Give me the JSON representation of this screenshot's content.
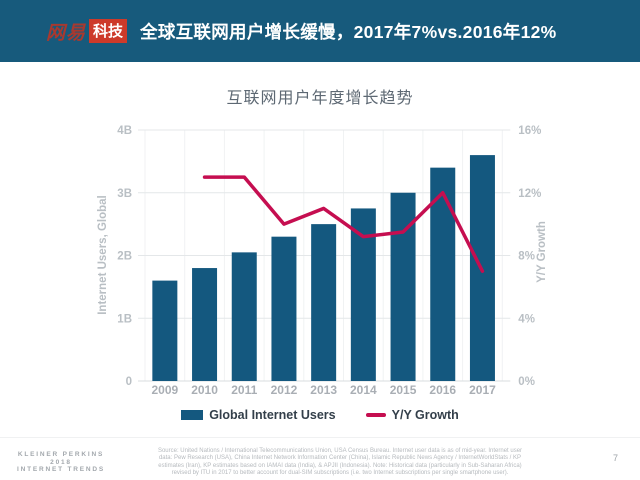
{
  "colors": {
    "header_bg": "#175a7c",
    "logo_red": "#a8392f",
    "logo_badge_bg": "#cd3a2a",
    "bar_blue": "#14587f",
    "line_crimson": "#c50e50"
  },
  "header": {
    "logo_text": "网易",
    "logo_badge": "科技",
    "title": "全球互联网用户增长缓慢，2017年7%vs.2016年12%"
  },
  "chart_data": {
    "type": "bar+line",
    "title": "互联网用户年度增长趋势",
    "categories": [
      "2009",
      "2010",
      "2011",
      "2012",
      "2013",
      "2014",
      "2015",
      "2016",
      "2017"
    ],
    "series": [
      {
        "name": "Global Internet Users",
        "type": "bar",
        "axis": "left",
        "unit": "billions",
        "color": "#14587f",
        "values": [
          1.6,
          1.8,
          2.05,
          2.3,
          2.5,
          2.75,
          3.0,
          3.4,
          3.6
        ]
      },
      {
        "name": "Y/Y Growth",
        "type": "line",
        "axis": "right",
        "unit": "%",
        "color": "#c50e50",
        "values": [
          null,
          13,
          13,
          10,
          11,
          9.2,
          9.5,
          12,
          7
        ]
      }
    ],
    "left_axis": {
      "label": "Internet Users, Global",
      "ticks": [
        "0",
        "1B",
        "2B",
        "3B",
        "4B"
      ],
      "min": 0,
      "max": 4
    },
    "right_axis": {
      "label": "Y/Y Growth",
      "ticks": [
        "0%",
        "4%",
        "8%",
        "12%",
        "16%"
      ],
      "min": 0,
      "max": 16
    },
    "legend_position": "bottom",
    "grid": "horizontal + faint vertical column lines"
  },
  "footer": {
    "brand_lines": [
      "KLEINER PERKINS",
      "2018",
      "INTERNET TRENDS"
    ],
    "source_lines": [
      "Source: United Nations / International Telecommunications Union, USA Census Bureau. Internet user data is as of mid-year. Internet user",
      "data: Pew Research (USA), China Internet Network Information Center (China), Islamic Republic News Agency / InternetWorldStats / KP",
      "estimates (Iran), KP estimates based on IAMAI data (India), & APJII (Indonesia). Note: Historical data (particularly in Sub-Saharan Africa)",
      "revised by ITU in 2017 to better account for dual-SIM subscriptions (i.e. two Internet subscriptions per single smartphone user)."
    ],
    "page_number": "7"
  }
}
